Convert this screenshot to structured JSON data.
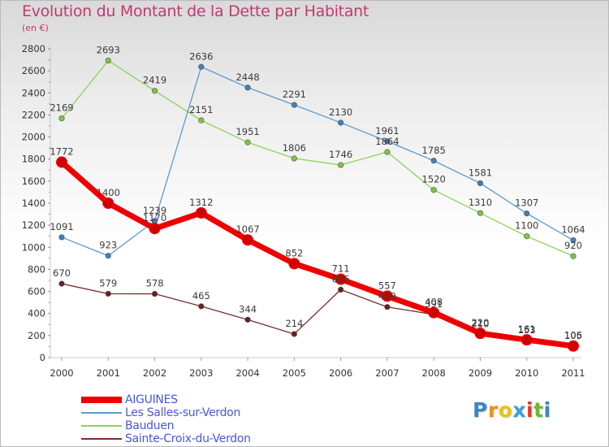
{
  "header": {
    "title": "Evolution du Montant de la Dette par Habitant",
    "subtitle": "(en €)"
  },
  "logo": {
    "text": "Proxiti",
    "letters": [
      "P",
      "r",
      "o",
      "x",
      "i",
      "t",
      "i"
    ],
    "colors": [
      "#3a86c8",
      "#f28c1a",
      "#e8c21a",
      "#3aa0d8",
      "#e03a2a",
      "#70b82a",
      "#3a86c8"
    ]
  },
  "chart_data": {
    "type": "line",
    "title": "Evolution du Montant de la Dette par Habitant",
    "subtitle": "(en €)",
    "xlabel": "",
    "ylabel": "",
    "x": [
      "2000",
      "2001",
      "2002",
      "2003",
      "2004",
      "2005",
      "2006",
      "2007",
      "2008",
      "2009",
      "2010",
      "2011"
    ],
    "ylim": [
      0,
      2800
    ],
    "yticks": [
      0,
      200,
      400,
      600,
      800,
      1000,
      1200,
      1400,
      1600,
      1800,
      2000,
      2200,
      2400,
      2600,
      2800
    ],
    "grid": false,
    "legend_position": "bottom-left",
    "series": [
      {
        "name": "AIGUINES",
        "color": "#ee0000",
        "marker": "#d00000",
        "width": 7,
        "values": [
          1772,
          1400,
          1170,
          1312,
          1067,
          852,
          711,
          557,
          408,
          220,
          161,
          105
        ],
        "labels": [
          "1772",
          "1400",
          "1170",
          "1312",
          "1067",
          "852",
          "711",
          "557",
          "408",
          "220",
          "161",
          "105"
        ]
      },
      {
        "name": "Les Salles-sur-Verdon",
        "color": "#5b9bd0",
        "marker": "#3d7fc0",
        "width": 1.3,
        "values": [
          1091,
          923,
          1239,
          2636,
          2448,
          2291,
          2130,
          1961,
          1785,
          1581,
          1307,
          1064
        ],
        "labels": [
          "1091",
          "923",
          "1239",
          "2636",
          "2448",
          "2291",
          "2130",
          "1961",
          "1785",
          "1581",
          "1307",
          "1064"
        ]
      },
      {
        "name": "Bauduen",
        "color": "#8fd25a",
        "marker": "#7cc63f",
        "width": 1.3,
        "values": [
          2169,
          2693,
          2419,
          2151,
          1951,
          1806,
          1746,
          1864,
          1520,
          1310,
          1100,
          920
        ],
        "labels": [
          "2169",
          "2693",
          "2419",
          "2151",
          "1951",
          "1806",
          "1746",
          "1864",
          "1520",
          "1310",
          "1100",
          "920"
        ]
      },
      {
        "name": "Sainte-Croix-du-Verdon",
        "color": "#7a2e2e",
        "marker": "#6b1f1f",
        "width": 1.3,
        "values": [
          670,
          579,
          578,
          465,
          344,
          214,
          616,
          459,
          391,
          210,
          153,
          106
        ],
        "labels": [
          "670",
          "579",
          "578",
          "465",
          "344",
          "214",
          "616",
          "459",
          "391",
          "210",
          "153",
          "106"
        ]
      }
    ]
  }
}
